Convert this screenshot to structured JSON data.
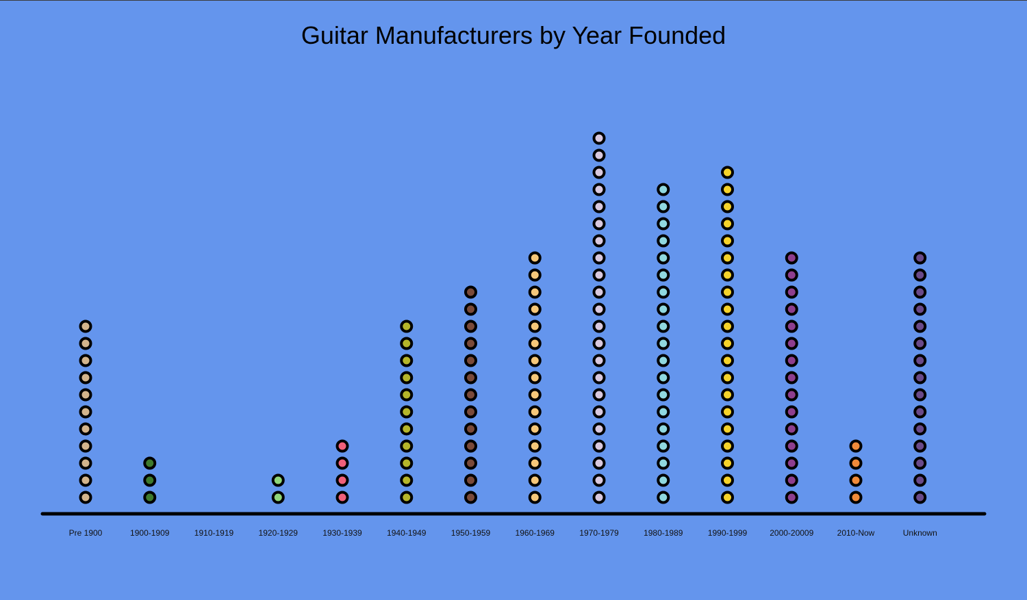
{
  "chart_data": {
    "type": "dot-plot",
    "title": "Guitar Manufacturers by Year Founded",
    "xlabel": "",
    "ylabel": "",
    "grid": false,
    "legend": "none",
    "categories": [
      {
        "label": "Pre 1900",
        "count": 11,
        "color": "#D2B48C"
      },
      {
        "label": "1900-1909",
        "count": 3,
        "color": "#3E7A2E"
      },
      {
        "label": "1910-1919",
        "count": 0,
        "color": "#9ACD32"
      },
      {
        "label": "1920-1929",
        "count": 2,
        "color": "#8FD67A"
      },
      {
        "label": "1930-1939",
        "count": 4,
        "color": "#F0607A"
      },
      {
        "label": "1940-1949",
        "count": 11,
        "color": "#B5B52A"
      },
      {
        "label": "1950-1959",
        "count": 13,
        "color": "#7A4A3A"
      },
      {
        "label": "1960-1969",
        "count": 15,
        "color": "#F5C77A"
      },
      {
        "label": "1970-1979",
        "count": 22,
        "color": "#D8C8DE"
      },
      {
        "label": "1980-1989",
        "count": 19,
        "color": "#8FD8E0"
      },
      {
        "label": "1990-1999",
        "count": 20,
        "color": "#F5D22A"
      },
      {
        "label": "2000-20009",
        "count": 15,
        "color": "#8E3E8E"
      },
      {
        "label": "2010-Now",
        "count": 4,
        "color": "#F08A3A"
      },
      {
        "label": "Unknown",
        "count": 15,
        "color": "#6A4A8A"
      }
    ]
  }
}
